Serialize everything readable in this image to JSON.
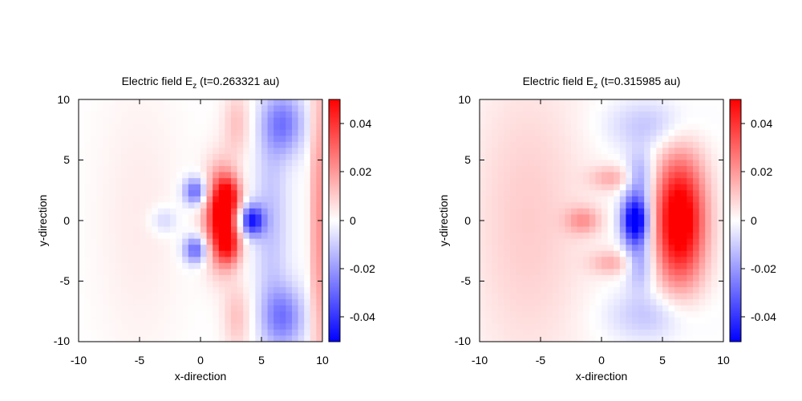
{
  "chart_data": [
    {
      "type": "heatmap",
      "title_main": "Electric field E",
      "title_sub": "z",
      "title_tail": " (t=0.263321 au)",
      "xlabel": "x-direction",
      "ylabel": "y-direction",
      "xlim": [
        -10,
        10
      ],
      "ylim": [
        -10,
        10
      ],
      "xticks": [
        "-10",
        "-5",
        "0",
        "5",
        "10"
      ],
      "yticks": [
        "10",
        "5",
        "0",
        "-5",
        "-10"
      ],
      "colorbar": {
        "range": [
          -0.05,
          0.05
        ],
        "ticks": [
          "0.04",
          "0.02",
          "0",
          "-0.02",
          "-0.04"
        ],
        "colors": [
          "#0000ff",
          "#ffffff",
          "#ff0000"
        ]
      },
      "features": [
        {
          "x": 1.6,
          "y": 0.3,
          "sx": 0.9,
          "sy": 2.6,
          "v": 0.05
        },
        {
          "x": 2.4,
          "y": 2.0,
          "sx": 0.7,
          "sy": 1.2,
          "v": 0.03
        },
        {
          "x": 2.4,
          "y": -2.0,
          "sx": 0.7,
          "sy": 1.2,
          "v": 0.03
        },
        {
          "x": -0.4,
          "y": 2.4,
          "sx": 0.7,
          "sy": 0.8,
          "v": -0.032
        },
        {
          "x": -0.4,
          "y": -2.4,
          "sx": 0.7,
          "sy": 0.8,
          "v": -0.032
        },
        {
          "x": 4.2,
          "y": 0.0,
          "sx": 0.7,
          "sy": 0.9,
          "v": -0.045
        },
        {
          "x": 6.8,
          "y": 8.0,
          "sx": 1.2,
          "sy": 1.8,
          "v": -0.025
        },
        {
          "x": 6.8,
          "y": -8.0,
          "sx": 1.2,
          "sy": 1.8,
          "v": -0.025
        },
        {
          "x": 5.8,
          "y": 0.0,
          "sx": 1.0,
          "sy": 6.0,
          "v": -0.012
        },
        {
          "x": 9.6,
          "y": 0.0,
          "sx": 0.4,
          "sy": 10.0,
          "v": 0.022
        },
        {
          "x": 3.0,
          "y": 8.0,
          "sx": 0.8,
          "sy": 2.0,
          "v": 0.012
        },
        {
          "x": 3.0,
          "y": -8.0,
          "sx": 0.8,
          "sy": 2.0,
          "v": 0.012
        },
        {
          "x": -3.0,
          "y": 0.0,
          "sx": 0.8,
          "sy": 0.8,
          "v": -0.01
        },
        {
          "x": -5.0,
          "y": 0.0,
          "sx": 2.5,
          "sy": 8.0,
          "v": 0.004
        }
      ]
    },
    {
      "type": "heatmap",
      "title_main": "Electric field E",
      "title_sub": "z",
      "title_tail": " (t=0.315985 au)",
      "xlabel": "x-direction",
      "ylabel": "y-direction",
      "xlim": [
        -10,
        10
      ],
      "ylim": [
        -10,
        10
      ],
      "xticks": [
        "-10",
        "-5",
        "0",
        "5",
        "10"
      ],
      "yticks": [
        "10",
        "5",
        "0",
        "-5",
        "-10"
      ],
      "colorbar": {
        "range": [
          -0.05,
          0.05
        ],
        "ticks": [
          "0.04",
          "0.02",
          "0",
          "-0.02",
          "-0.04"
        ],
        "colors": [
          "#0000ff",
          "#ffffff",
          "#ff0000"
        ]
      },
      "features": [
        {
          "x": 6.4,
          "y": 0.0,
          "sx": 1.5,
          "sy": 3.8,
          "v": 0.06
        },
        {
          "x": 2.8,
          "y": 0.0,
          "sx": 0.8,
          "sy": 1.4,
          "v": -0.06
        },
        {
          "x": 3.2,
          "y": 3.5,
          "sx": 0.8,
          "sy": 1.5,
          "v": -0.02
        },
        {
          "x": 3.2,
          "y": -3.5,
          "sx": 0.8,
          "sy": 1.5,
          "v": -0.02
        },
        {
          "x": 4.0,
          "y": 7.8,
          "sx": 2.5,
          "sy": 1.5,
          "v": -0.012
        },
        {
          "x": 4.0,
          "y": -7.8,
          "sx": 2.5,
          "sy": 1.5,
          "v": -0.012
        },
        {
          "x": -1.5,
          "y": 0.0,
          "sx": 1.0,
          "sy": 0.8,
          "v": 0.018
        },
        {
          "x": 0.8,
          "y": 3.5,
          "sx": 1.2,
          "sy": 0.7,
          "v": 0.015
        },
        {
          "x": 0.8,
          "y": -3.5,
          "sx": 1.2,
          "sy": 0.7,
          "v": 0.015
        },
        {
          "x": -6.0,
          "y": 0.0,
          "sx": 3.5,
          "sy": 9.0,
          "v": 0.01
        }
      ]
    }
  ]
}
